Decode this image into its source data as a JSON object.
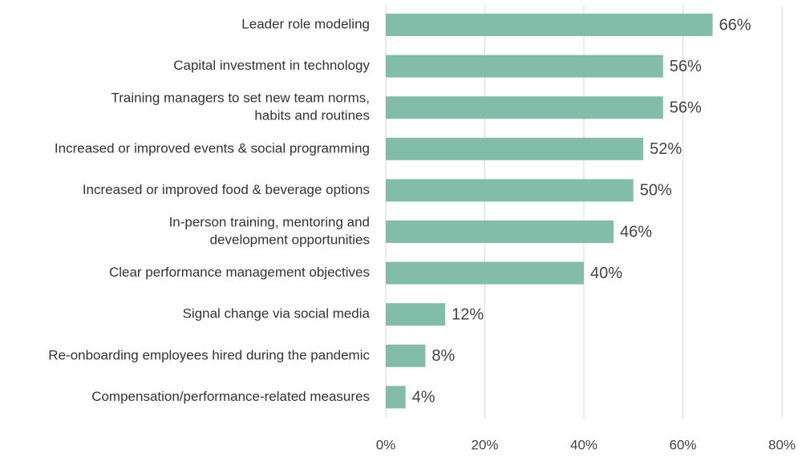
{
  "chart_data": {
    "type": "bar",
    "orientation": "horizontal",
    "categories": [
      [
        "Leader role modeling"
      ],
      [
        "Capital investment in technology"
      ],
      [
        "Training managers to set new team norms,",
        "habits and routines"
      ],
      [
        "Increased or improved events & social programming"
      ],
      [
        "Increased or improved food & beverage options"
      ],
      [
        "In-person training, mentoring and",
        "development opportunities"
      ],
      [
        "Clear performance management objectives"
      ],
      [
        "Signal change via social media"
      ],
      [
        "Re-onboarding employees hired during the pandemic"
      ],
      [
        "Compensation/performance-related measures"
      ]
    ],
    "values": [
      66,
      56,
      56,
      52,
      50,
      46,
      40,
      12,
      8,
      4
    ],
    "value_labels": [
      "66%",
      "56%",
      "56%",
      "52%",
      "50%",
      "46%",
      "40%",
      "12%",
      "8%",
      "4%"
    ],
    "xlim": [
      0,
      80
    ],
    "xticks": [
      0,
      20,
      40,
      60,
      80
    ],
    "xtick_labels": [
      "0%",
      "20%",
      "40%",
      "60%",
      "80%"
    ],
    "grid": "vertical",
    "bar_color": "#82bdaa",
    "title": "",
    "xlabel": "",
    "ylabel": ""
  }
}
